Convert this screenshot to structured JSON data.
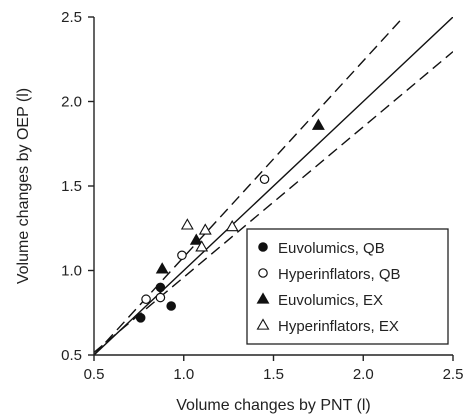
{
  "chart_data": {
    "type": "scatter",
    "xlabel": "Volume changes by PNT (l)",
    "ylabel": "Volume changes by OEP (l)",
    "xlim": [
      0.5,
      2.5
    ],
    "ylim": [
      0.5,
      2.5
    ],
    "xticks": [
      "0.5",
      "1.0",
      "1.5",
      "2.0",
      "2.5"
    ],
    "yticks": [
      "0.5",
      "1.0",
      "1.5",
      "2.0",
      "2.5"
    ],
    "grid": false,
    "legend_position": "bottom-right",
    "series": [
      {
        "name": "Euvolumics, QB",
        "marker": "filled-circle",
        "points": [
          [
            0.76,
            0.72
          ],
          [
            0.87,
            0.9
          ],
          [
            0.93,
            0.79
          ]
        ]
      },
      {
        "name": "Hyperinflators, QB",
        "marker": "open-circle",
        "points": [
          [
            0.79,
            0.83
          ],
          [
            0.87,
            0.84
          ],
          [
            0.99,
            1.09
          ],
          [
            1.45,
            1.54
          ]
        ]
      },
      {
        "name": "Euvolumics, EX",
        "marker": "filled-triangle",
        "points": [
          [
            0.88,
            1.01
          ],
          [
            1.07,
            1.18
          ],
          [
            1.75,
            1.86
          ]
        ]
      },
      {
        "name": "Hyperinflators, EX",
        "marker": "open-triangle",
        "points": [
          [
            1.02,
            1.27
          ],
          [
            1.1,
            1.14
          ],
          [
            1.12,
            1.24
          ],
          [
            1.27,
            1.26
          ]
        ]
      }
    ],
    "regression_line": {
      "slope": 1.0,
      "intercept": 0.0,
      "style": "solid"
    },
    "confidence_bands": [
      {
        "slope": 1.16,
        "intercept": -0.08,
        "style": "dashed"
      },
      {
        "slope": 0.89,
        "intercept": 0.07,
        "style": "dashed"
      }
    ]
  }
}
